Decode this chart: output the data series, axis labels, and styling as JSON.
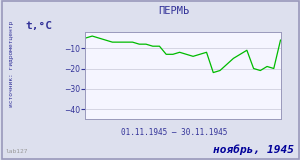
{
  "title": "ПЕРМЬ",
  "ylabel": "t,°C",
  "xlabel_range": "01.11.1945 – 30.11.1945",
  "footer_left": "lab127",
  "footer_right": "ноябрь, 1945",
  "source_label": "источник: гидрометцентр",
  "ylim": [
    -45,
    -2
  ],
  "yticks": [
    -40,
    -30,
    -20,
    -10
  ],
  "xlim": [
    1,
    30
  ],
  "line_color": "#00bb00",
  "bg_color": "#dde0ee",
  "plot_bg": "#f5f5ff",
  "border_color": "#9999bb",
  "title_color": "#333399",
  "footer_right_color": "#000099",
  "footer_left_color": "#999999",
  "axis_label_color": "#333399",
  "grid_color": "#c8c8d8",
  "temperatures": [
    -5,
    -4,
    -5,
    -6,
    -7,
    -7,
    -7,
    -7,
    -8,
    -8,
    -9,
    -9,
    -13,
    -13,
    -12,
    -13,
    -14,
    -13,
    -12,
    -22,
    -21,
    -18,
    -15,
    -13,
    -11,
    -20,
    -21,
    -19,
    -20,
    -6
  ]
}
